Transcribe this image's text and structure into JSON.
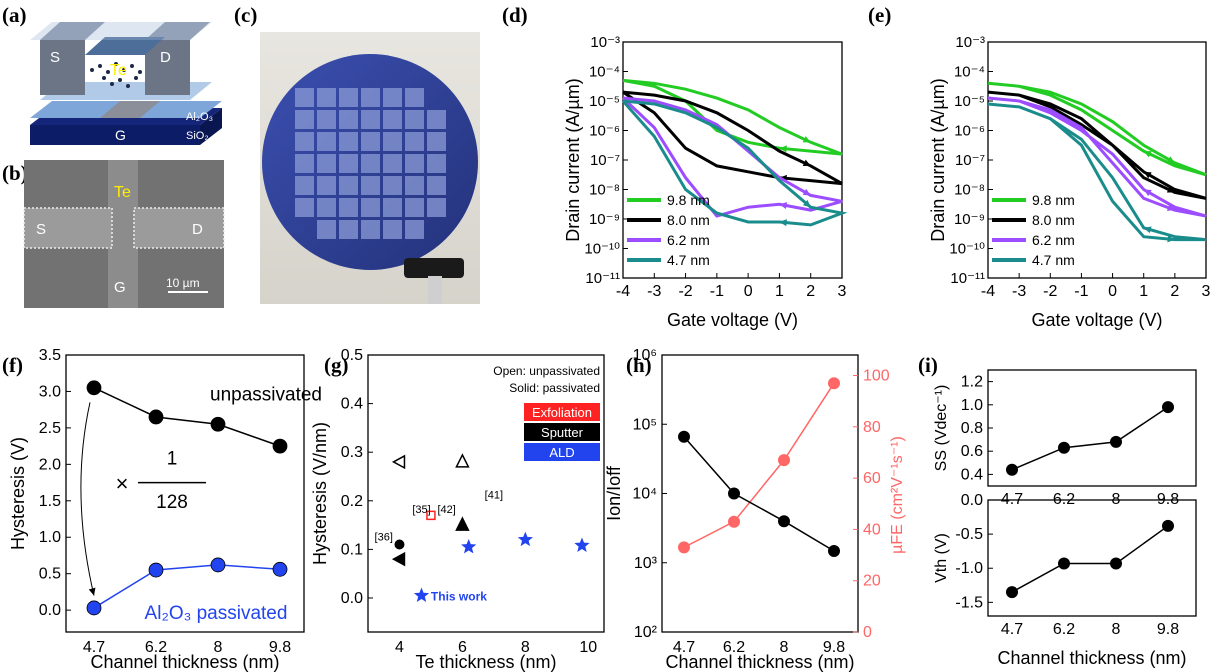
{
  "panels": {
    "a": {
      "label": "(a)",
      "texts": {
        "top": "Al₂O₃",
        "s": "S",
        "d": "D",
        "te": "Te",
        "g": "G",
        "mid": "Al₂O₃",
        "sub": "SiO₂"
      }
    },
    "b": {
      "label": "(b)",
      "texts": {
        "te": "Te",
        "s": "S",
        "d": "D",
        "g": "G",
        "scale": "10 µm"
      }
    },
    "c": {
      "label": "(c)"
    },
    "d": {
      "label": "(d)"
    },
    "e": {
      "label": "(e)"
    },
    "f": {
      "label": "(f)"
    },
    "g": {
      "label": "(g)"
    },
    "h": {
      "label": "(h)"
    },
    "i": {
      "label": "(i)"
    }
  },
  "colors": {
    "green": "#22cc22",
    "black": "#000000",
    "purple": "#9b4dff",
    "teal": "#1a8c8c",
    "blue": "#2244ee",
    "red": "#ff4444"
  },
  "chart_data": [
    {
      "id": "d",
      "type": "line",
      "xlabel": "Gate voltage (V)",
      "ylabel": "Drain current (A/µm)",
      "xlim": [
        -4,
        3
      ],
      "ylim_log": [
        -11,
        -3
      ],
      "xticks": [
        "-4",
        "-3",
        "-2",
        "-1",
        "0",
        "1",
        "2",
        "3"
      ],
      "yticks": [
        "10⁻³",
        "10⁻⁴",
        "10⁻⁵",
        "10⁻⁶",
        "10⁻⁷",
        "10⁻⁸",
        "10⁻⁹",
        "10⁻¹⁰",
        "10⁻¹¹"
      ],
      "legend": [
        "9.8 nm",
        "8.0 nm",
        "6.2 nm",
        "4.7 nm"
      ],
      "series": [
        {
          "name": "9.8 nm",
          "color": "#22cc22",
          "fwd": [
            [
              -4,
              -4.3
            ],
            [
              -3,
              -4.4
            ],
            [
              -2,
              -4.6
            ],
            [
              -1,
              -4.9
            ],
            [
              0,
              -5.3
            ],
            [
              1,
              -5.9
            ],
            [
              2,
              -6.4
            ],
            [
              3,
              -6.8
            ]
          ],
          "rev": [
            [
              3,
              -6.8
            ],
            [
              2,
              -6.7
            ],
            [
              1,
              -6.6
            ],
            [
              0,
              -6.4
            ],
            [
              -1,
              -6.0
            ],
            [
              -2,
              -5.0
            ],
            [
              -3,
              -4.5
            ],
            [
              -4,
              -4.3
            ]
          ]
        },
        {
          "name": "8.0 nm",
          "color": "#000000",
          "fwd": [
            [
              -4,
              -4.7
            ],
            [
              -3,
              -4.8
            ],
            [
              -2,
              -5.0
            ],
            [
              -1,
              -5.4
            ],
            [
              0,
              -6.0
            ],
            [
              1,
              -6.7
            ],
            [
              2,
              -7.2
            ],
            [
              3,
              -7.8
            ]
          ],
          "rev": [
            [
              3,
              -7.8
            ],
            [
              2,
              -7.7
            ],
            [
              1,
              -7.6
            ],
            [
              0,
              -7.4
            ],
            [
              -1,
              -7.2
            ],
            [
              -2,
              -6.6
            ],
            [
              -3,
              -5.4
            ],
            [
              -4,
              -4.7
            ]
          ]
        },
        {
          "name": "6.2 nm",
          "color": "#9b4dff",
          "fwd": [
            [
              -4,
              -4.9
            ],
            [
              -3,
              -5.0
            ],
            [
              -2,
              -5.3
            ],
            [
              -1,
              -5.8
            ],
            [
              0,
              -6.7
            ],
            [
              1,
              -7.6
            ],
            [
              2,
              -8.2
            ],
            [
              3,
              -8.4
            ]
          ],
          "rev": [
            [
              3,
              -8.8
            ],
            [
              2,
              -8.7
            ],
            [
              1,
              -8.5
            ],
            [
              0,
              -8.6
            ],
            [
              -1,
              -8.9
            ],
            [
              -2,
              -7.6
            ],
            [
              -3,
              -5.9
            ],
            [
              -4,
              -4.9
            ]
          ]
        },
        {
          "name": "4.7 nm",
          "color": "#1a8c8c",
          "fwd": [
            [
              -4,
              -5.0
            ],
            [
              -3,
              -5.1
            ],
            [
              -2,
              -5.4
            ],
            [
              -1,
              -5.9
            ],
            [
              0,
              -6.6
            ],
            [
              1,
              -7.7
            ],
            [
              2,
              -8.6
            ],
            [
              3,
              -8.8
            ]
          ],
          "rev": [
            [
              3,
              -9.3
            ],
            [
              2,
              -9.2
            ],
            [
              1,
              -9.1
            ],
            [
              0,
              -9.1
            ],
            [
              -1,
              -8.8
            ],
            [
              -2,
              -8.0
            ],
            [
              -3,
              -6.2
            ],
            [
              -4,
              -5.0
            ]
          ]
        }
      ]
    },
    {
      "id": "e",
      "type": "line",
      "xlabel": "Gate voltage (V)",
      "ylabel": "Drain current (A/µm)",
      "xlim": [
        -4,
        3
      ],
      "ylim_log": [
        -11,
        -3
      ],
      "xticks": [
        "-4",
        "-3",
        "-2",
        "-1",
        "0",
        "1",
        "2",
        "3"
      ],
      "yticks": [
        "10⁻³",
        "10⁻⁴",
        "10⁻⁵",
        "10⁻⁶",
        "10⁻⁷",
        "10⁻⁸",
        "10⁻⁹",
        "10⁻¹⁰",
        "10⁻¹¹"
      ],
      "legend": [
        "9.8 nm",
        "8.0 nm",
        "6.2 nm",
        "4.7 nm"
      ],
      "series": [
        {
          "name": "9.8 nm",
          "color": "#22cc22",
          "fwd": [
            [
              -4,
              -4.4
            ],
            [
              -3,
              -4.5
            ],
            [
              -2,
              -4.7
            ],
            [
              -1,
              -5.1
            ],
            [
              0,
              -5.7
            ],
            [
              1,
              -6.5
            ],
            [
              2,
              -7.1
            ],
            [
              3,
              -7.5
            ]
          ],
          "rev": [
            [
              3,
              -7.5
            ],
            [
              2,
              -7.2
            ],
            [
              1,
              -6.7
            ],
            [
              0,
              -6.0
            ],
            [
              -1,
              -5.3
            ],
            [
              -2,
              -4.8
            ],
            [
              -3,
              -4.5
            ],
            [
              -4,
              -4.4
            ]
          ]
        },
        {
          "name": "8.0 nm",
          "color": "#000000",
          "fwd": [
            [
              -4,
              -4.7
            ],
            [
              -3,
              -4.8
            ],
            [
              -2,
              -5.1
            ],
            [
              -1,
              -5.6
            ],
            [
              0,
              -6.5
            ],
            [
              1,
              -7.6
            ],
            [
              2,
              -8.1
            ],
            [
              3,
              -8.3
            ]
          ],
          "rev": [
            [
              3,
              -8.3
            ],
            [
              2,
              -8.0
            ],
            [
              1,
              -7.4
            ],
            [
              0,
              -6.5
            ],
            [
              -1,
              -5.8
            ],
            [
              -2,
              -5.2
            ],
            [
              -3,
              -4.8
            ],
            [
              -4,
              -4.7
            ]
          ]
        },
        {
          "name": "6.2 nm",
          "color": "#9b4dff",
          "fwd": [
            [
              -4,
              -4.9
            ],
            [
              -3,
              -5.0
            ],
            [
              -2,
              -5.3
            ],
            [
              -1,
              -5.9
            ],
            [
              0,
              -7.1
            ],
            [
              1,
              -8.3
            ],
            [
              2,
              -8.7
            ],
            [
              3,
              -8.9
            ]
          ],
          "rev": [
            [
              3,
              -8.8
            ],
            [
              2,
              -8.6
            ],
            [
              1,
              -8.0
            ],
            [
              0,
              -6.8
            ],
            [
              -1,
              -6.0
            ],
            [
              -2,
              -5.4
            ],
            [
              -3,
              -5.0
            ],
            [
              -4,
              -4.9
            ]
          ]
        },
        {
          "name": "4.7 nm",
          "color": "#1a8c8c",
          "fwd": [
            [
              -4,
              -5.1
            ],
            [
              -3,
              -5.2
            ],
            [
              -2,
              -5.6
            ],
            [
              -1,
              -6.5
            ],
            [
              0,
              -8.4
            ],
            [
              1,
              -9.6
            ],
            [
              2,
              -9.7
            ],
            [
              3,
              -9.7
            ]
          ],
          "rev": [
            [
              3,
              -9.7
            ],
            [
              2,
              -9.6
            ],
            [
              1,
              -9.3
            ],
            [
              0,
              -7.6
            ],
            [
              -1,
              -6.3
            ],
            [
              -2,
              -5.6
            ],
            [
              -3,
              -5.2
            ],
            [
              -4,
              -5.1
            ]
          ]
        }
      ]
    },
    {
      "id": "f",
      "type": "line",
      "xlabel": "Channel thickness (nm)",
      "ylabel": "Hysteresis (V)",
      "ylim": [
        -0.3,
        3.5
      ],
      "categories": [
        "4.7",
        "6.2",
        "8",
        "9.8"
      ],
      "yticks": [
        "0.0",
        "0.5",
        "1.0",
        "1.5",
        "2.0",
        "2.5",
        "3.0",
        "3.5"
      ],
      "series": [
        {
          "name": "unpassivated",
          "color": "#000000",
          "values": [
            3.05,
            2.65,
            2.55,
            2.25
          ]
        },
        {
          "name": "Al₂O₃ passivated",
          "color": "#2244ee",
          "values": [
            0.03,
            0.55,
            0.62,
            0.56
          ]
        }
      ],
      "annotation": {
        "times": "×",
        "num": "1",
        "den": "128"
      }
    },
    {
      "id": "g",
      "type": "scatter",
      "xlabel": "Te thickness (nm)",
      "ylabel": "Hysteresis (V/nm)",
      "xlim": [
        3,
        10.5
      ],
      "ylim": [
        -0.07,
        0.5
      ],
      "xticks": [
        "4",
        "6",
        "8",
        "10"
      ],
      "yticks": [
        "0.0",
        "0.1",
        "0.2",
        "0.3",
        "0.4",
        "0.5"
      ],
      "legend_notes": [
        "Open: unpassivated",
        "Solid: passivated"
      ],
      "legend_boxes": [
        {
          "text": "Exfoliation",
          "color": "#ff2222"
        },
        {
          "text": "Sputter",
          "color": "#000000"
        },
        {
          "text": "ALD",
          "color": "#2244ee"
        }
      ],
      "points": [
        {
          "x": 4.0,
          "y": 0.28,
          "shape": "tri-left-open",
          "color": "#000000"
        },
        {
          "x": 6.0,
          "y": 0.28,
          "shape": "tri-open",
          "color": "#000000"
        },
        {
          "x": 4.0,
          "y": 0.11,
          "shape": "circle",
          "color": "#000000"
        },
        {
          "x": 4.0,
          "y": 0.08,
          "shape": "tri-left",
          "color": "#000000"
        },
        {
          "x": 5.0,
          "y": 0.17,
          "shape": "square-open",
          "color": "#ff2222"
        },
        {
          "x": 6.0,
          "y": 0.15,
          "shape": "tri",
          "color": "#000000"
        },
        {
          "x": 4.7,
          "y": 0.005,
          "shape": "star",
          "color": "#2244ee"
        },
        {
          "x": 6.2,
          "y": 0.105,
          "shape": "star",
          "color": "#2244ee"
        },
        {
          "x": 8.0,
          "y": 0.12,
          "shape": "star",
          "color": "#2244ee"
        },
        {
          "x": 9.8,
          "y": 0.108,
          "shape": "star",
          "color": "#2244ee"
        }
      ],
      "refs": [
        {
          "text": "[35]",
          "x": 4.7,
          "y": 0.175
        },
        {
          "text": "[42]",
          "x": 5.5,
          "y": 0.175
        },
        {
          "text": "[41]",
          "x": 7.0,
          "y": 0.205
        },
        {
          "text": "[36]",
          "x": 3.5,
          "y": 0.118
        }
      ],
      "this_work": "This work"
    },
    {
      "id": "h",
      "type": "line",
      "xlabel": "Channel thickness (nm)",
      "ylabel_left": "Ion/Ioff",
      "ylabel_right": "µFE (cm²V⁻¹s⁻¹)",
      "categories": [
        "4.7",
        "6.2",
        "8",
        "9.8"
      ],
      "ylim_log_left": [
        2,
        6
      ],
      "ylim_right": [
        0,
        108
      ],
      "yticks_left": [
        "10²",
        "10³",
        "10⁴",
        "10⁵",
        "10⁶"
      ],
      "yticks_right": [
        "0",
        "20",
        "40",
        "60",
        "80",
        "100"
      ],
      "series": [
        {
          "name": "Ion/Ioff",
          "axis": "left",
          "color": "#000000",
          "log_values": [
            4.82,
            4.0,
            3.6,
            3.17
          ]
        },
        {
          "name": "µFE",
          "axis": "right",
          "color": "#ff6666",
          "values": [
            33,
            43,
            67,
            97
          ]
        }
      ]
    },
    {
      "id": "i",
      "type": "line",
      "xlabel": "Channel thickness (nm)",
      "categories": [
        "4.7",
        "6.2",
        "8",
        "9.8"
      ],
      "subplots": [
        {
          "ylabel": "SS (Vdec⁻¹)",
          "ylim": [
            0.3,
            1.3
          ],
          "yticks": [
            "0.4",
            "0.6",
            "0.8",
            "1.0",
            "1.2"
          ],
          "values": [
            0.44,
            0.63,
            0.68,
            0.98
          ]
        },
        {
          "ylabel": "Vth (V)",
          "ylim": [
            -1.7,
            0
          ],
          "yticks": [
            "0.0",
            "-0.5",
            "-1.0",
            "-1.5"
          ],
          "values": [
            -1.35,
            -0.93,
            -0.93,
            -0.38
          ]
        }
      ]
    }
  ]
}
